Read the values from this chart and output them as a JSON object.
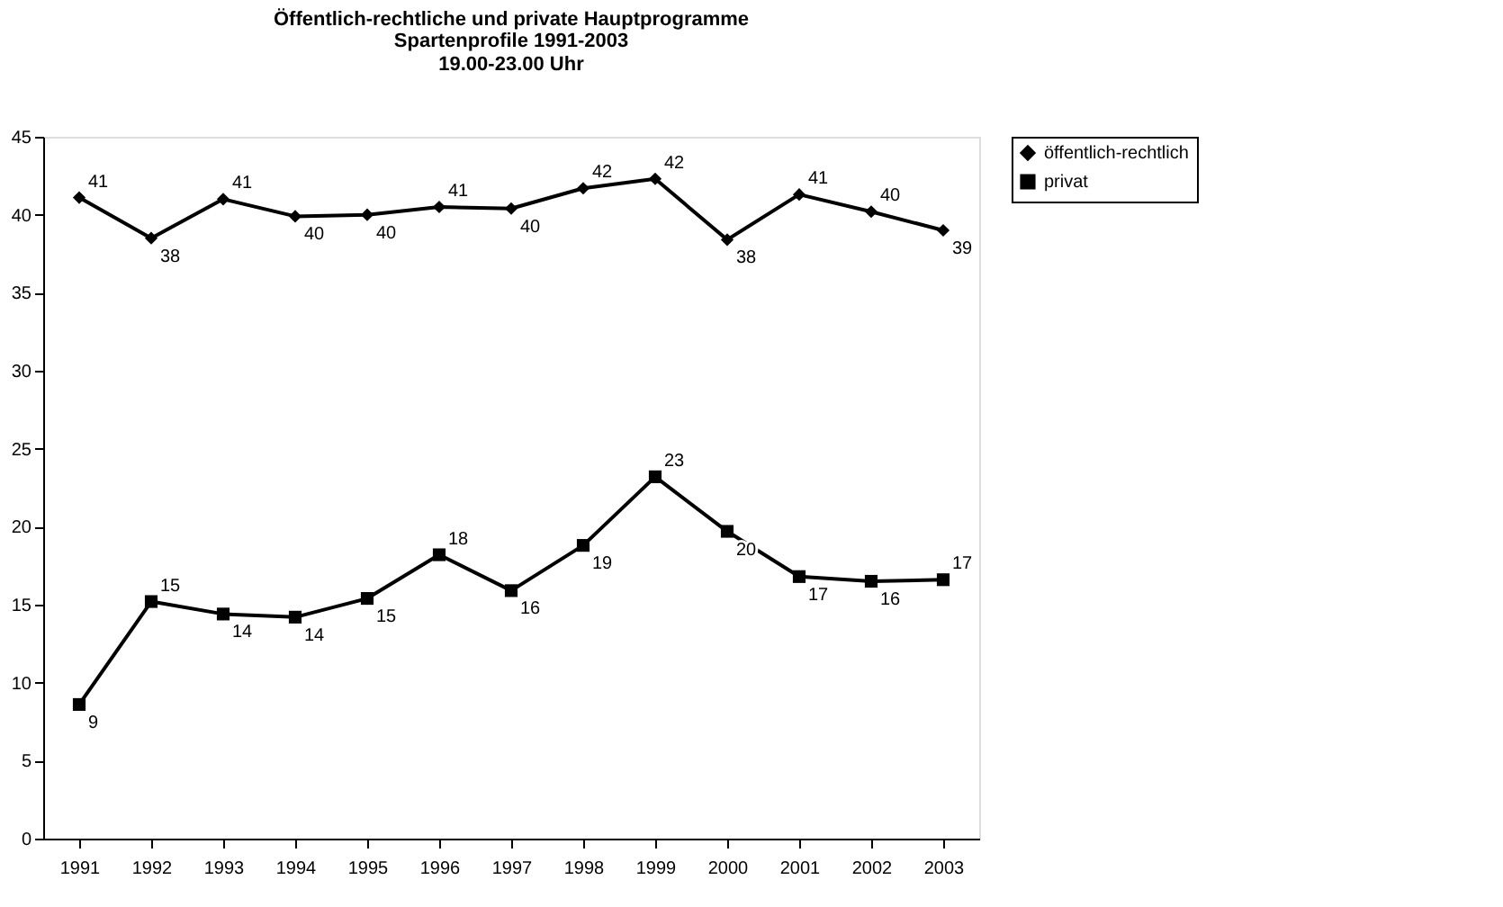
{
  "chart_data": {
    "type": "line",
    "title": "Öffentlich-rechtliche und private Hauptprogramme",
    "subtitle": [
      "Spartenprofile 1991-2003",
      "19.00-23.00 Uhr"
    ],
    "categories": [
      "1991",
      "1992",
      "1993",
      "1994",
      "1995",
      "1996",
      "1997",
      "1998",
      "1999",
      "2000",
      "2001",
      "2002",
      "2003"
    ],
    "series": [
      {
        "name": "öffentlich-rechtlich",
        "color": "#000000",
        "marker": "diamond",
        "values": [
          41.1,
          38.5,
          41.0,
          39.9,
          40.0,
          40.5,
          40.4,
          41.7,
          42.3,
          38.4,
          41.3,
          40.2,
          39.0
        ],
        "value_labels": [
          "41",
          "38",
          "41",
          "40",
          "40",
          "41",
          "40",
          "42",
          "42",
          "38",
          "41",
          "40",
          "39"
        ]
      },
      {
        "name": "privat",
        "color": "#000000",
        "marker": "square",
        "values": [
          8.6,
          15.2,
          14.4,
          14.2,
          15.4,
          18.2,
          15.9,
          18.8,
          23.2,
          19.7,
          16.8,
          16.5,
          16.6
        ],
        "value_labels": [
          "9",
          "15",
          "14",
          "14",
          "15",
          "18",
          "16",
          "19",
          "23",
          "20",
          "17",
          "16",
          "17"
        ]
      }
    ],
    "ylim": [
      0,
      45
    ],
    "yticks": [
      0,
      5,
      10,
      15,
      20,
      25,
      30,
      35,
      40,
      45
    ],
    "grid": false,
    "legend": "right",
    "line_style": "solid"
  }
}
